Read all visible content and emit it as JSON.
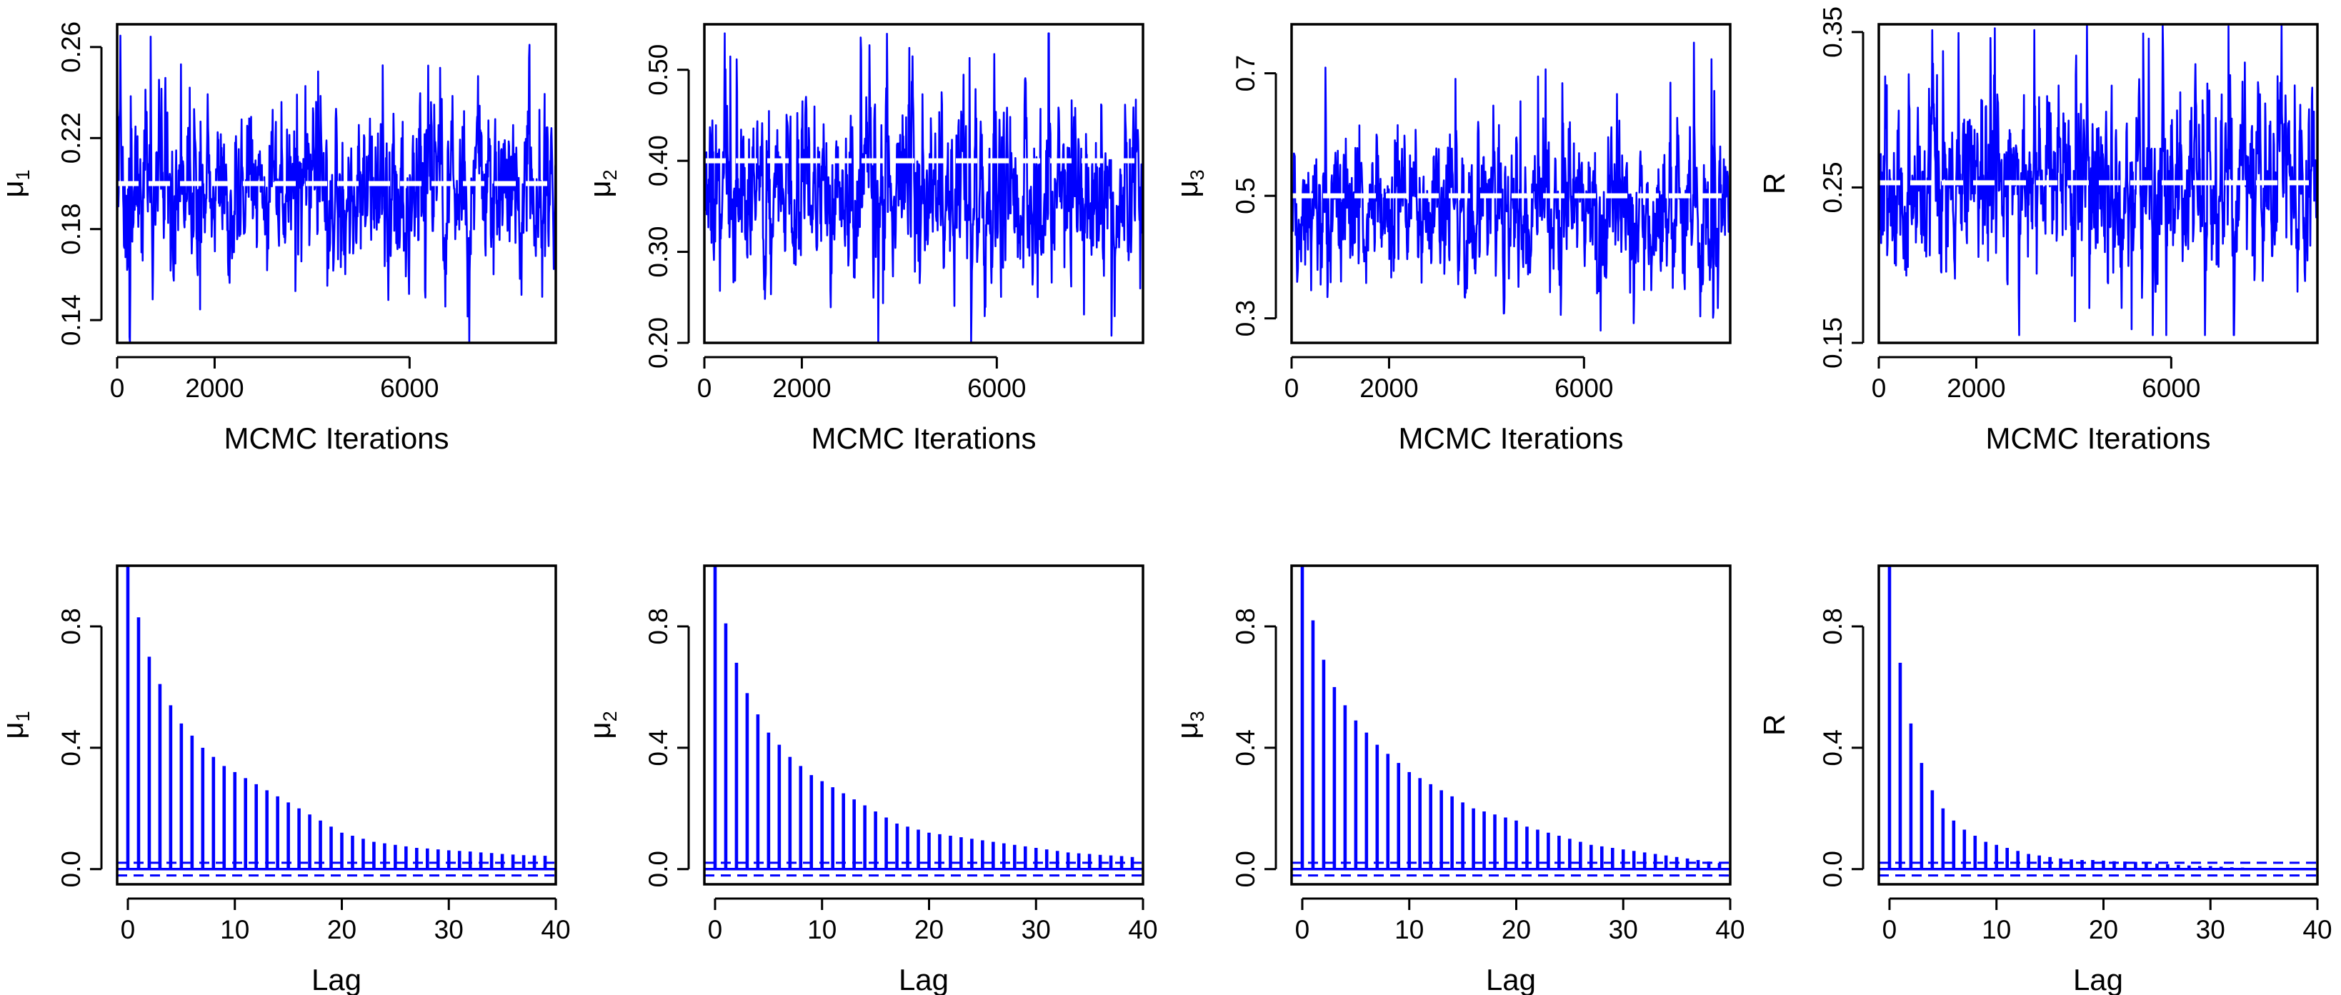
{
  "colors": {
    "series": "#0000ff",
    "reference": "#ffffff",
    "axis": "#000000"
  },
  "chart_data": [
    {
      "type": "line",
      "panel": "trace",
      "title": "",
      "xlabel": "MCMC Iterations",
      "ylabel": {
        "base": "μ",
        "sub": "1"
      },
      "iterations": 9000,
      "xlim": [
        0,
        9000
      ],
      "ylim": [
        0.13,
        0.27
      ],
      "xticks": [
        0,
        2000,
        6000
      ],
      "xtick_labels": [
        "0",
        "2000",
        "6000"
      ],
      "yticks": [
        0.14,
        0.18,
        0.22,
        0.26
      ],
      "ytick_labels": [
        "0.14",
        "0.18",
        "0.22",
        "0.26"
      ],
      "true_value": 0.2,
      "center": 0.197,
      "sd": 0.017,
      "min": 0.13,
      "max": 0.265
    },
    {
      "type": "line",
      "panel": "trace",
      "title": "",
      "xlabel": "MCMC Iterations",
      "ylabel": {
        "base": "μ",
        "sub": "2"
      },
      "iterations": 9000,
      "xlim": [
        0,
        9000
      ],
      "ylim": [
        0.2,
        0.55
      ],
      "xticks": [
        0,
        2000,
        6000
      ],
      "xtick_labels": [
        "0",
        "2000",
        "6000"
      ],
      "yticks": [
        0.2,
        0.3,
        0.4,
        0.5
      ],
      "ytick_labels": [
        "0.20",
        "0.30",
        "0.40",
        "0.50"
      ],
      "true_value": 0.4,
      "center": 0.36,
      "sd": 0.042,
      "min": 0.2,
      "max": 0.54
    },
    {
      "type": "line",
      "panel": "trace",
      "title": "",
      "xlabel": "MCMC Iterations",
      "ylabel": {
        "base": "μ",
        "sub": "3"
      },
      "iterations": 9000,
      "xlim": [
        0,
        9000
      ],
      "ylim": [
        0.26,
        0.78
      ],
      "xticks": [
        0,
        2000,
        6000
      ],
      "xtick_labels": [
        "0",
        "2000",
        "6000"
      ],
      "yticks": [
        0.3,
        0.5,
        0.7
      ],
      "ytick_labels": [
        "0.3",
        "0.5",
        "0.7"
      ],
      "true_value": 0.5,
      "center": 0.47,
      "sd": 0.055,
      "min": 0.28,
      "max": 0.75
    },
    {
      "type": "line",
      "panel": "trace",
      "title": "",
      "xlabel": "MCMC Iterations",
      "ylabel": {
        "base": "R",
        "sub": ""
      },
      "iterations": 9000,
      "xlim": [
        0,
        9000
      ],
      "ylim": [
        0.15,
        0.355
      ],
      "xticks": [
        0,
        2000,
        6000
      ],
      "xtick_labels": [
        "0",
        "2000",
        "6000"
      ],
      "yticks": [
        0.15,
        0.25,
        0.35
      ],
      "ytick_labels": [
        "0.15",
        "0.25",
        "0.35"
      ],
      "true_value": 0.253,
      "center": 0.25,
      "sd": 0.027,
      "min": 0.155,
      "max": 0.355
    },
    {
      "type": "bar",
      "panel": "acf",
      "title": "",
      "xlabel": "Lag",
      "ylabel": {
        "base": "μ",
        "sub": "1"
      },
      "xlim": [
        -1,
        40
      ],
      "ylim": [
        -0.05,
        1.0
      ],
      "xticks": [
        0,
        10,
        20,
        30,
        40
      ],
      "xtick_labels": [
        "0",
        "10",
        "20",
        "30",
        "40"
      ],
      "yticks": [
        0.0,
        0.4,
        0.8
      ],
      "ytick_labels": [
        "0.0",
        "0.4",
        "0.8"
      ],
      "ci": 0.021,
      "lags": [
        0,
        1,
        2,
        3,
        4,
        5,
        6,
        7,
        8,
        9,
        10,
        11,
        12,
        13,
        14,
        15,
        16,
        17,
        18,
        19,
        20,
        21,
        22,
        23,
        24,
        25,
        26,
        27,
        28,
        29,
        30,
        31,
        32,
        33,
        34,
        35,
        36,
        37,
        38,
        39
      ],
      "values": [
        1.0,
        0.83,
        0.7,
        0.61,
        0.54,
        0.48,
        0.44,
        0.4,
        0.37,
        0.34,
        0.32,
        0.3,
        0.28,
        0.26,
        0.24,
        0.22,
        0.2,
        0.18,
        0.16,
        0.14,
        0.12,
        0.11,
        0.1,
        0.09,
        0.085,
        0.08,
        0.075,
        0.07,
        0.068,
        0.065,
        0.062,
        0.06,
        0.058,
        0.055,
        0.053,
        0.05,
        0.048,
        0.046,
        0.045,
        0.044
      ]
    },
    {
      "type": "bar",
      "panel": "acf",
      "title": "",
      "xlabel": "Lag",
      "ylabel": {
        "base": "μ",
        "sub": "2"
      },
      "xlim": [
        -1,
        40
      ],
      "ylim": [
        -0.05,
        1.0
      ],
      "xticks": [
        0,
        10,
        20,
        30,
        40
      ],
      "xtick_labels": [
        "0",
        "10",
        "20",
        "30",
        "40"
      ],
      "yticks": [
        0.0,
        0.4,
        0.8
      ],
      "ytick_labels": [
        "0.0",
        "0.4",
        "0.8"
      ],
      "ci": 0.021,
      "lags": [
        0,
        1,
        2,
        3,
        4,
        5,
        6,
        7,
        8,
        9,
        10,
        11,
        12,
        13,
        14,
        15,
        16,
        17,
        18,
        19,
        20,
        21,
        22,
        23,
        24,
        25,
        26,
        27,
        28,
        29,
        30,
        31,
        32,
        33,
        34,
        35,
        36,
        37,
        38,
        39
      ],
      "values": [
        1.0,
        0.81,
        0.68,
        0.58,
        0.51,
        0.45,
        0.41,
        0.37,
        0.34,
        0.31,
        0.29,
        0.27,
        0.25,
        0.23,
        0.21,
        0.19,
        0.17,
        0.15,
        0.14,
        0.13,
        0.12,
        0.115,
        0.11,
        0.105,
        0.1,
        0.095,
        0.09,
        0.085,
        0.08,
        0.075,
        0.07,
        0.065,
        0.06,
        0.055,
        0.052,
        0.05,
        0.047,
        0.045,
        0.043,
        0.04
      ]
    },
    {
      "type": "bar",
      "panel": "acf",
      "title": "",
      "xlabel": "Lag",
      "ylabel": {
        "base": "μ",
        "sub": "3"
      },
      "xlim": [
        -1,
        40
      ],
      "ylim": [
        -0.05,
        1.0
      ],
      "xticks": [
        0,
        10,
        20,
        30,
        40
      ],
      "xtick_labels": [
        "0",
        "10",
        "20",
        "30",
        "40"
      ],
      "yticks": [
        0.0,
        0.4,
        0.8
      ],
      "ytick_labels": [
        "0.0",
        "0.4",
        "0.8"
      ],
      "ci": 0.021,
      "lags": [
        0,
        1,
        2,
        3,
        4,
        5,
        6,
        7,
        8,
        9,
        10,
        11,
        12,
        13,
        14,
        15,
        16,
        17,
        18,
        19,
        20,
        21,
        22,
        23,
        24,
        25,
        26,
        27,
        28,
        29,
        30,
        31,
        32,
        33,
        34,
        35,
        36,
        37,
        38,
        39
      ],
      "values": [
        1.0,
        0.82,
        0.69,
        0.6,
        0.54,
        0.49,
        0.45,
        0.41,
        0.38,
        0.35,
        0.32,
        0.3,
        0.28,
        0.26,
        0.24,
        0.22,
        0.2,
        0.19,
        0.18,
        0.17,
        0.16,
        0.14,
        0.13,
        0.12,
        0.11,
        0.1,
        0.09,
        0.08,
        0.075,
        0.07,
        0.065,
        0.06,
        0.055,
        0.05,
        0.045,
        0.04,
        0.035,
        0.03,
        0.025,
        0.02
      ]
    },
    {
      "type": "bar",
      "panel": "acf",
      "title": "",
      "xlabel": "Lag",
      "ylabel": {
        "base": "R",
        "sub": ""
      },
      "xlim": [
        -1,
        40
      ],
      "ylim": [
        -0.05,
        1.0
      ],
      "xticks": [
        0,
        10,
        20,
        30,
        40
      ],
      "xtick_labels": [
        "0",
        "10",
        "20",
        "30",
        "40"
      ],
      "yticks": [
        0.0,
        0.4,
        0.8
      ],
      "ytick_labels": [
        "0.0",
        "0.4",
        "0.8"
      ],
      "ci": 0.021,
      "lags": [
        0,
        1,
        2,
        3,
        4,
        5,
        6,
        7,
        8,
        9,
        10,
        11,
        12,
        13,
        14,
        15,
        16,
        17,
        18,
        19,
        20,
        21,
        22,
        23,
        24,
        25,
        26,
        27,
        28,
        29,
        30,
        31,
        32,
        33,
        34,
        35,
        36,
        37,
        38,
        39
      ],
      "values": [
        1.0,
        0.68,
        0.48,
        0.35,
        0.26,
        0.2,
        0.16,
        0.13,
        0.11,
        0.09,
        0.08,
        0.07,
        0.06,
        0.05,
        0.045,
        0.04,
        0.035,
        0.032,
        0.03,
        0.03,
        0.028,
        0.026,
        0.025,
        0.024,
        0.02,
        0.018,
        0.016,
        0.014,
        0.012,
        0.01,
        0.01,
        0.008,
        0.006,
        0.005,
        0.004,
        0.003,
        0.002,
        0.001,
        0.0,
        0.0
      ]
    }
  ]
}
